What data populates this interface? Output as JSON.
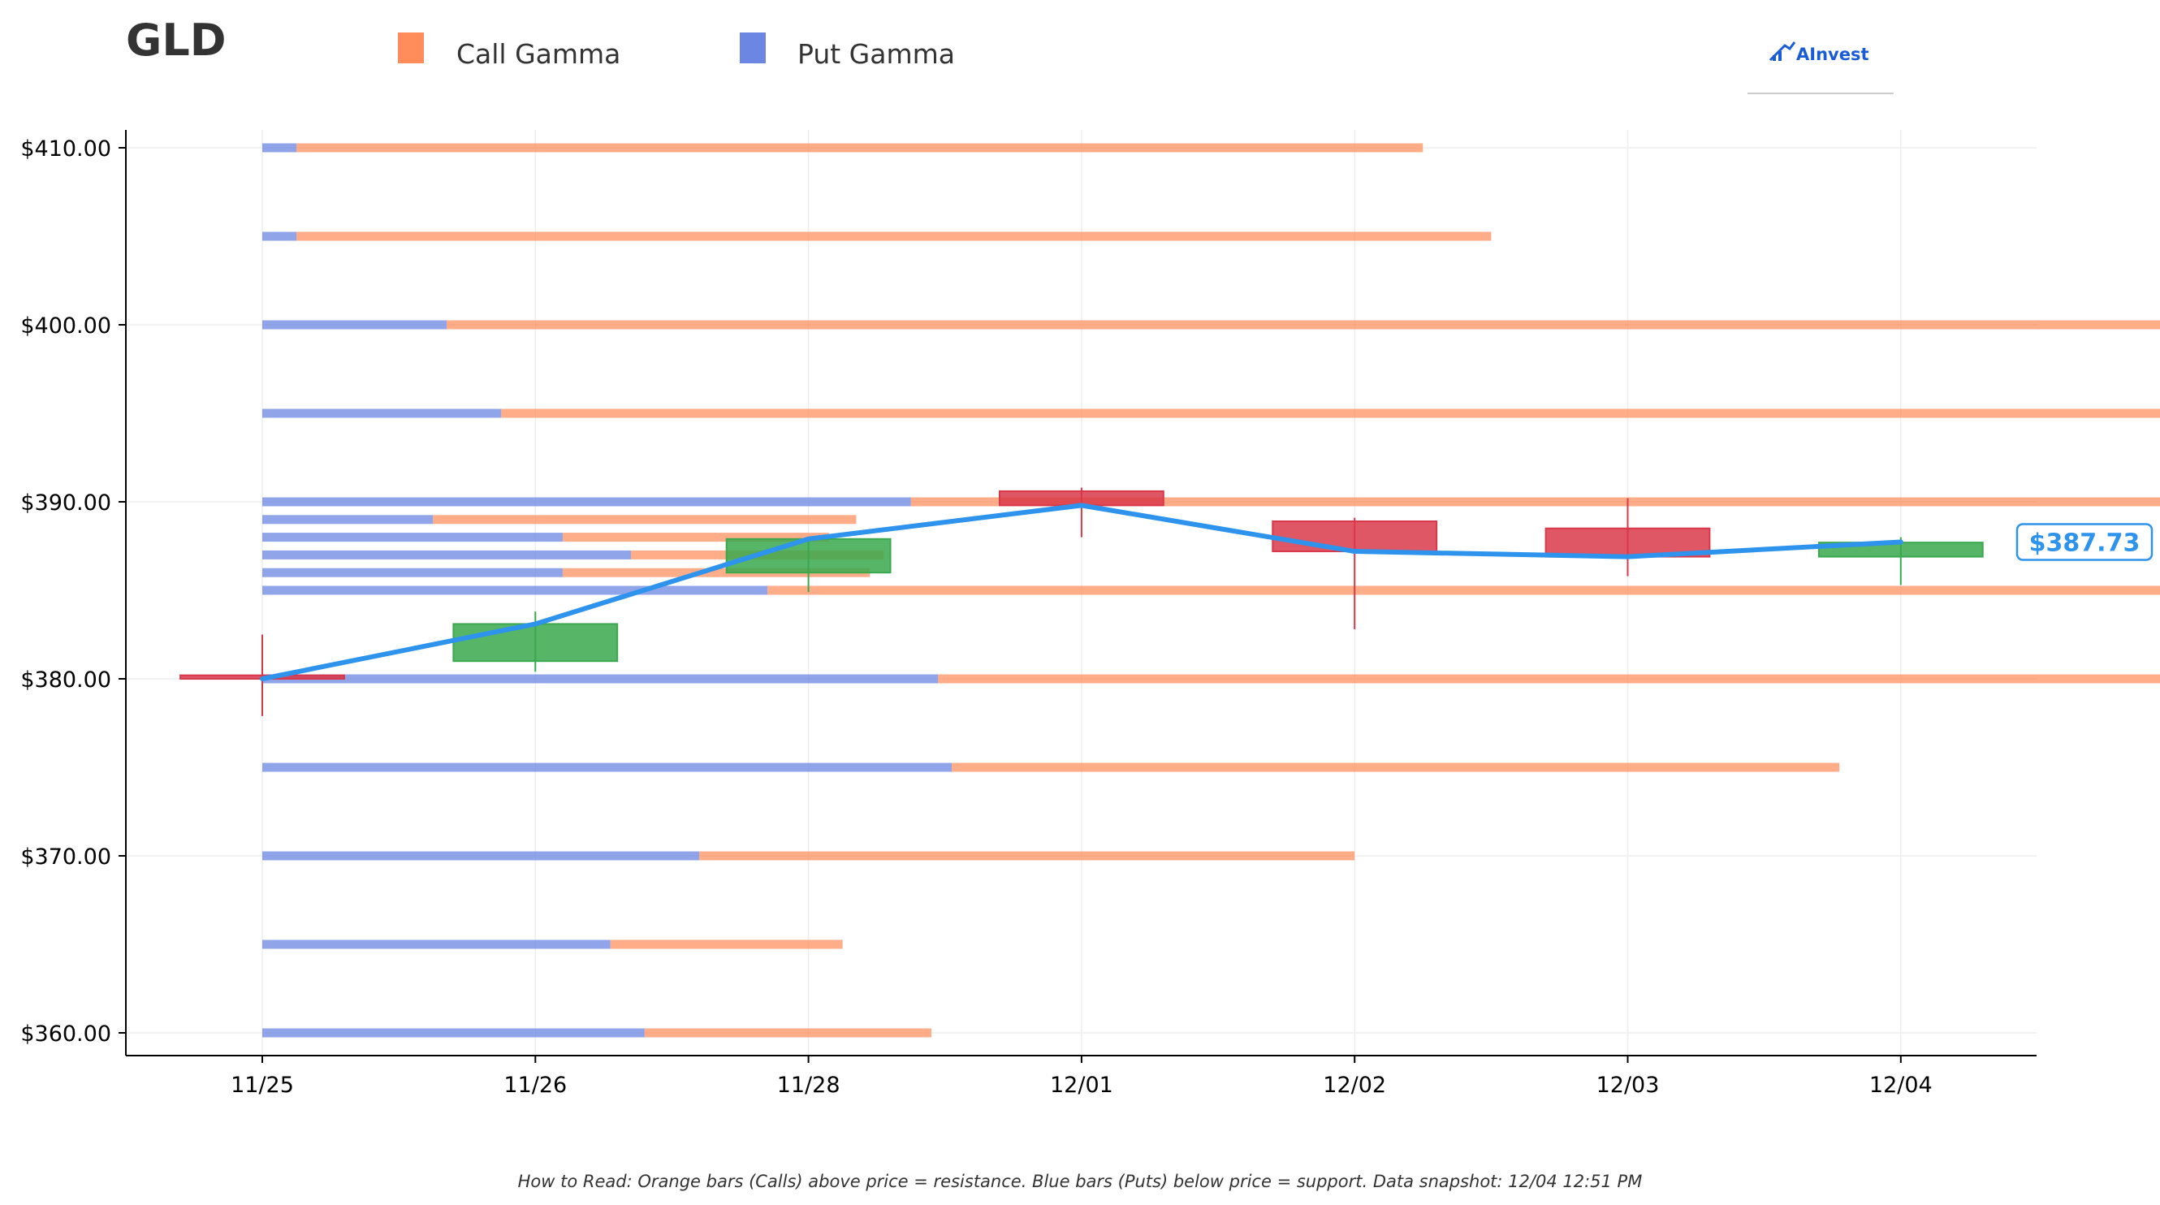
{
  "ticker": "GLD",
  "logo": {
    "text": "AInvest",
    "color": "#1a5bd6"
  },
  "legend": [
    {
      "label": "Call Gamma",
      "color": "#ff8c5a"
    },
    {
      "label": "Put Gamma",
      "color": "#6b86e3"
    }
  ],
  "footer": "How to Read: Orange bars (Calls) above price = resistance. Blue bars (Puts) below price = support. Data snapshot: 12/04 12:51 PM",
  "colors": {
    "call": "#ff8c5a",
    "put": "#6b86e3",
    "up": "#3aa84e",
    "down": "#d9384a",
    "line": "#2e93ec",
    "grid": "#eeeeee"
  },
  "chart_data": {
    "type": "candlestick",
    "title": "GLD",
    "categories": [
      "11/25",
      "11/26",
      "11/28",
      "12/01",
      "12/02",
      "12/03",
      "12/04"
    ],
    "ylim": [
      357.5,
      410
    ],
    "y_ticks": [
      360,
      370,
      380,
      390,
      400,
      410
    ],
    "y_tick_labels": [
      "$360.00",
      "$370.00",
      "$380.00",
      "$390.00",
      "$400.00",
      "$410.00"
    ],
    "grid": true,
    "candles": [
      {
        "date": "11/25",
        "open": 380.2,
        "high": 382.5,
        "low": 377.9,
        "close": 380.0
      },
      {
        "date": "11/26",
        "open": 381.0,
        "high": 383.8,
        "low": 380.4,
        "close": 383.1
      },
      {
        "date": "11/28",
        "open": 386.0,
        "high": 387.9,
        "low": 384.9,
        "close": 387.9
      },
      {
        "date": "12/01",
        "open": 390.6,
        "high": 390.8,
        "low": 388.0,
        "close": 389.8
      },
      {
        "date": "12/02",
        "open": 388.9,
        "high": 389.1,
        "low": 382.8,
        "close": 387.2
      },
      {
        "date": "12/03",
        "open": 388.5,
        "high": 390.2,
        "low": 385.8,
        "close": 386.9
      },
      {
        "date": "12/04",
        "open": 386.9,
        "high": 388.0,
        "low": 385.3,
        "close": 387.7
      }
    ],
    "close_line": {
      "dates": [
        "11/25",
        "11/26",
        "11/28",
        "12/01",
        "12/02",
        "12/03",
        "12/04"
      ],
      "values": [
        380.0,
        383.1,
        387.9,
        389.8,
        387.2,
        386.9,
        387.73
      ]
    },
    "last_price": 387.73,
    "last_price_label": "$387.73",
    "gamma_bars": [
      {
        "strike": 410,
        "put": 0.25,
        "call": 8.25
      },
      {
        "strike": 405,
        "put": 0.25,
        "call": 8.75
      },
      {
        "strike": 400,
        "put": 1.35,
        "call": 27.7
      },
      {
        "strike": 395,
        "put": 1.75,
        "call": 19.65
      },
      {
        "strike": 390,
        "put": 4.75,
        "call": 30.2
      },
      {
        "strike": 389,
        "put": 1.25,
        "call": 3.1
      },
      {
        "strike": 388,
        "put": 2.2,
        "call": 1.95
      },
      {
        "strike": 387,
        "put": 2.7,
        "call": 1.85
      },
      {
        "strike": 386,
        "put": 2.2,
        "call": 2.25
      },
      {
        "strike": 385,
        "put": 3.7,
        "call": 12.0
      },
      {
        "strike": 380,
        "put": 4.95,
        "call": 9.05
      },
      {
        "strike": 375,
        "put": 5.05,
        "call": 6.5
      },
      {
        "strike": 370,
        "put": 3.2,
        "call": 4.8
      },
      {
        "strike": 365,
        "put": 2.55,
        "call": 1.7
      },
      {
        "strike": 360,
        "put": 2.8,
        "call": 2.1
      }
    ]
  }
}
